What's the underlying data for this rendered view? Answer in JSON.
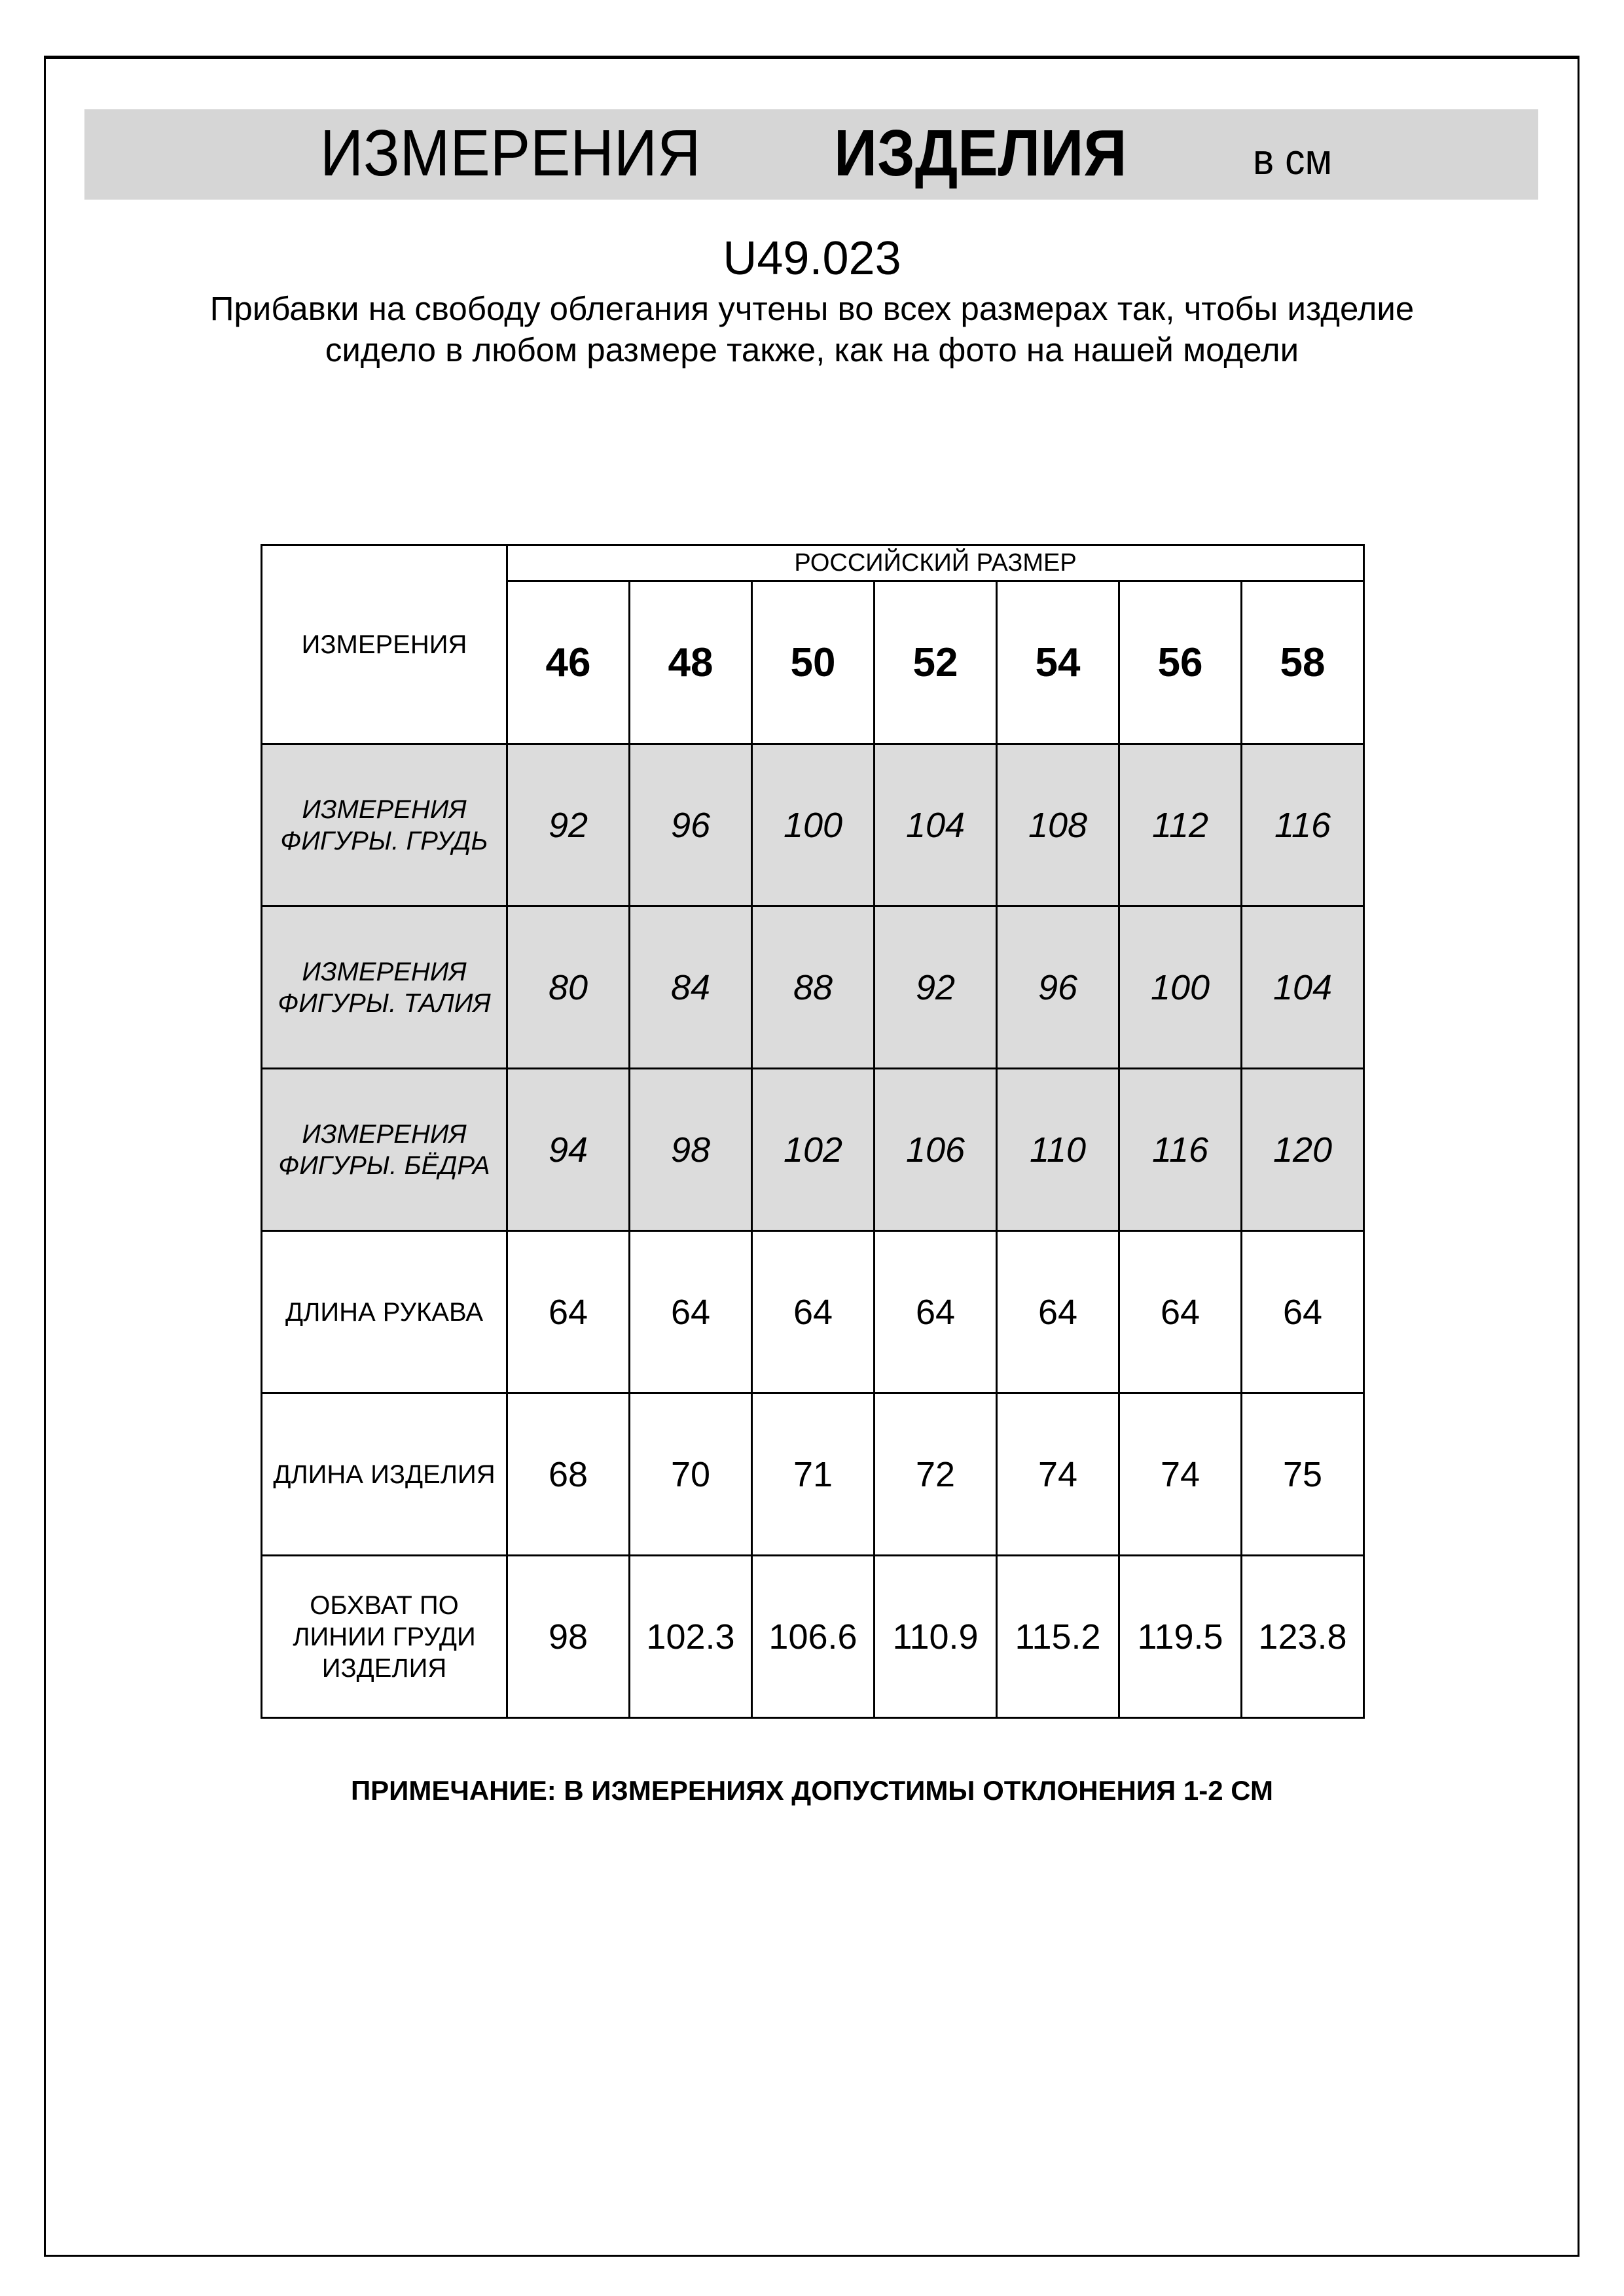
{
  "title": {
    "part1": "ИЗМЕРЕНИЯ",
    "part2": "ИЗДЕЛИЯ",
    "unit": "в см"
  },
  "article": "U49.023",
  "description": "Прибавки на свободу облегания учтены во всех размерах так, чтобы изделие сидело в любом размере также, как на фото на нашей модели",
  "table": {
    "corner_label": "ИЗМЕРЕНИЯ",
    "group_header": "РОССИЙСКИЙ РАЗМЕР",
    "sizes": [
      "46",
      "48",
      "50",
      "52",
      "54",
      "56",
      "58"
    ],
    "rows": [
      {
        "label": "ИЗМЕРЕНИЯ ФИГУРЫ. ГРУДЬ",
        "shaded": true,
        "values": [
          "92",
          "96",
          "100",
          "104",
          "108",
          "112",
          "116"
        ]
      },
      {
        "label": "ИЗМЕРЕНИЯ ФИГУРЫ. ТАЛИЯ",
        "shaded": true,
        "values": [
          "80",
          "84",
          "88",
          "92",
          "96",
          "100",
          "104"
        ]
      },
      {
        "label": "ИЗМЕРЕНИЯ ФИГУРЫ. БЁДРА",
        "shaded": true,
        "values": [
          "94",
          "98",
          "102",
          "106",
          "110",
          "116",
          "120"
        ]
      },
      {
        "label": "ДЛИНА РУКАВА",
        "shaded": false,
        "values": [
          "64",
          "64",
          "64",
          "64",
          "64",
          "64",
          "64"
        ]
      },
      {
        "label": "ДЛИНА ИЗДЕЛИЯ",
        "shaded": false,
        "values": [
          "68",
          "70",
          "71",
          "72",
          "74",
          "74",
          "75"
        ]
      },
      {
        "label": "ОБХВАТ ПО ЛИНИИ ГРУДИ ИЗДЕЛИЯ",
        "shaded": false,
        "values": [
          "98",
          "102.3",
          "106.6",
          "110.9",
          "115.2",
          "119.5",
          "123.8"
        ]
      }
    ]
  },
  "footnote": "ПРИМЕЧАНИЕ: В ИЗМЕРЕНИЯХ ДОПУСТИМЫ ОТКЛОНЕНИЯ 1-2 СМ",
  "colors": {
    "band": "#d6d6d6",
    "shaded_row": "#dcdcdc"
  }
}
